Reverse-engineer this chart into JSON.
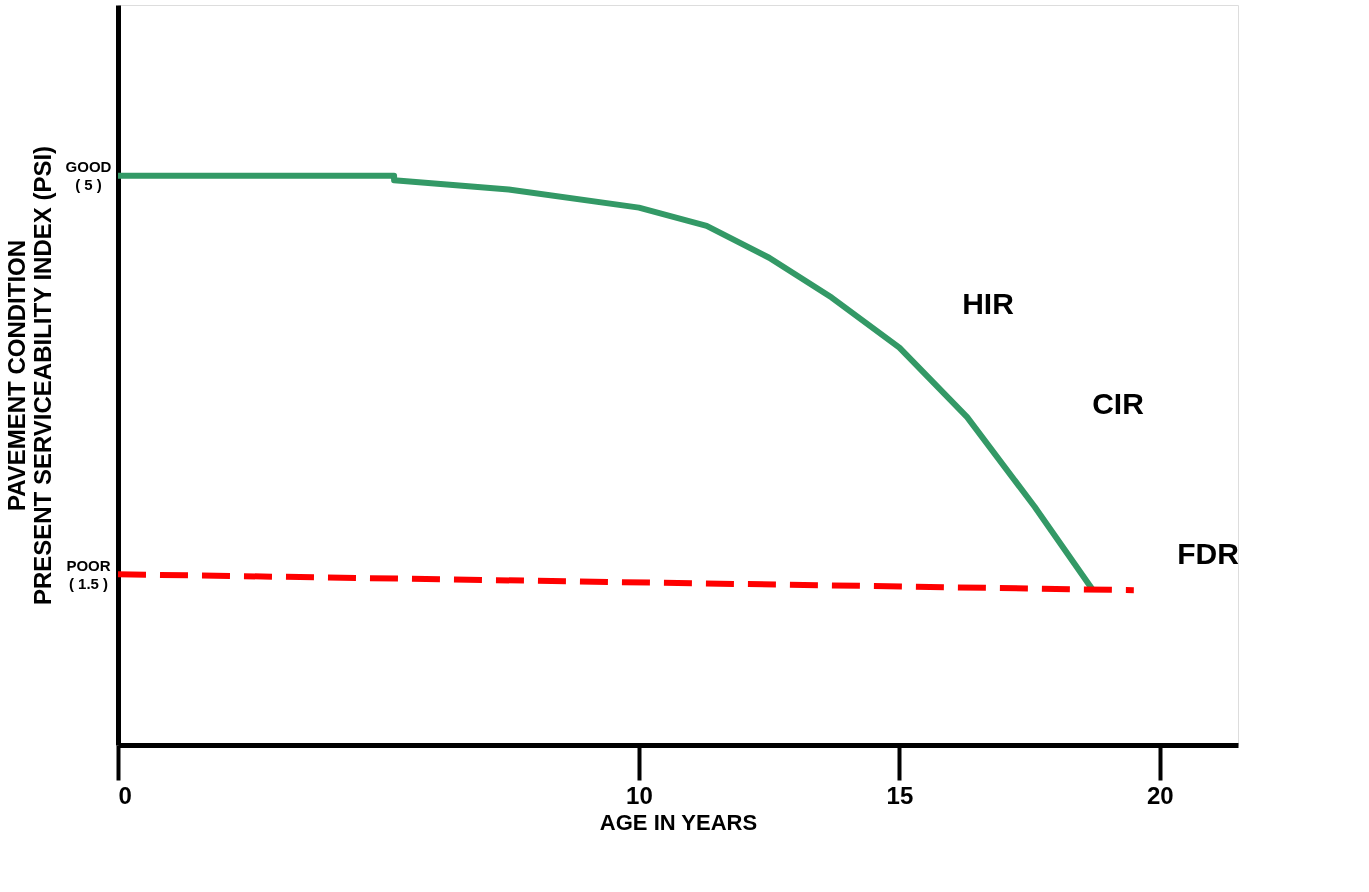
{
  "chart_data": {
    "type": "line",
    "xlabel": "AGE IN YEARS",
    "ylabel": "PAVEMENT CONDITION\nPRESENT SERVICEABILITY INDEX (PSI)",
    "series": [
      {
        "color": "#339966",
        "line_style": "solid",
        "x": [
          0,
          5.3,
          5.3,
          7.5,
          10,
          11.3,
          12.5,
          13.7,
          15,
          16.3,
          17.6,
          18.7
        ],
        "values": [
          5,
          5,
          4.96,
          4.88,
          4.72,
          4.56,
          4.28,
          3.93,
          3.49,
          2.88,
          2.09,
          1.37
        ]
      },
      {
        "color": "#ff0000",
        "line_style": "dashed",
        "x": [
          0,
          19.5
        ],
        "values": [
          1.5,
          1.36
        ]
      }
    ],
    "annotations": [
      "HIR",
      "CIR",
      "FDR"
    ],
    "xlim": [
      0,
      21.5
    ],
    "xticks": [
      0,
      10,
      15,
      20
    ],
    "ylim": [
      0,
      6.5
    ],
    "yticks": [
      {
        "value": 5,
        "label": "GOOD\n( 5 )"
      },
      {
        "value": 1.5,
        "label": "POOR\n( 1.5 )"
      }
    ],
    "grid": false
  }
}
